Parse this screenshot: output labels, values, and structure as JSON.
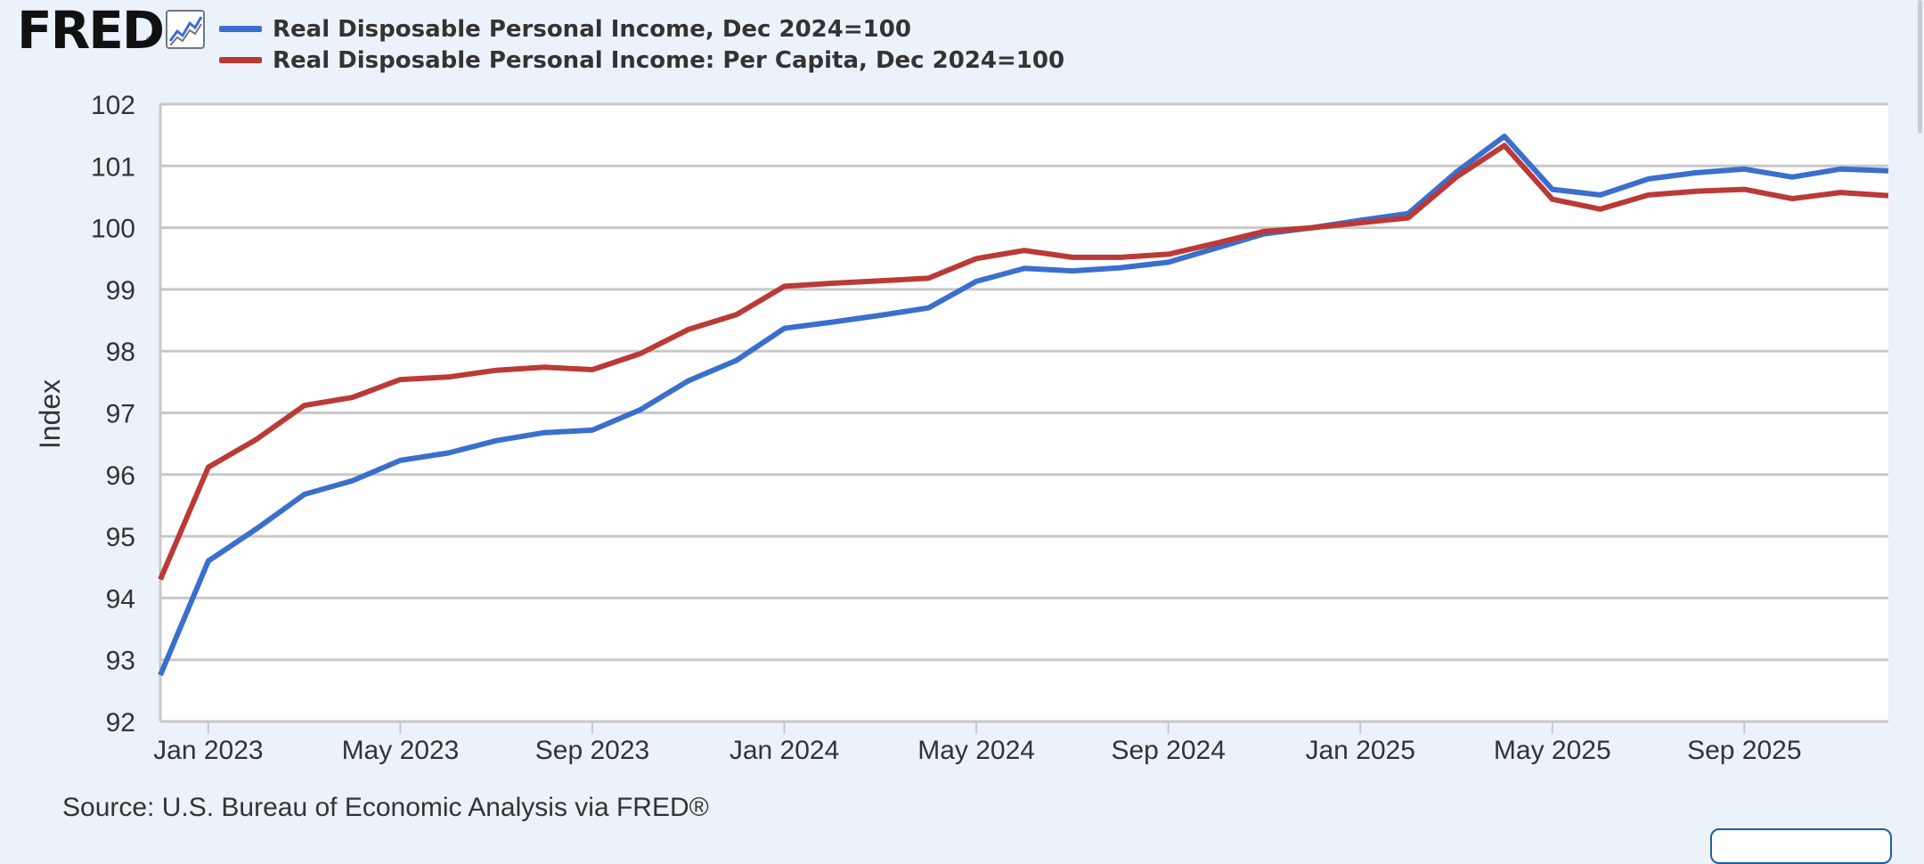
{
  "brand": {
    "logo_text": "FRED",
    "registered_mark": "®",
    "icon": "line-chart-icon"
  },
  "legend": [
    {
      "label": "Real Disposable Personal Income, Dec 2024=100",
      "color": "#3a6fce"
    },
    {
      "label": "Real Disposable Personal Income: Per Capita, Dec 2024=100",
      "color": "#bb3a36"
    }
  ],
  "source": "Source: U.S. Bureau of Economic Analysis via FRED®",
  "chart_data": {
    "type": "line",
    "ylabel": "Index",
    "ylim": [
      92,
      102
    ],
    "y_ticks": [
      "102",
      "101",
      "100",
      "99",
      "98",
      "97",
      "96",
      "95",
      "94",
      "93",
      "92"
    ],
    "x_range": [
      "2022-12",
      "2025-12"
    ],
    "x_ticks": [
      {
        "label": "Jan 2023",
        "date": "2023-01"
      },
      {
        "label": "May 2023",
        "date": "2023-05"
      },
      {
        "label": "Sep 2023",
        "date": "2023-09"
      },
      {
        "label": "Jan 2024",
        "date": "2024-01"
      },
      {
        "label": "May 2024",
        "date": "2024-05"
      },
      {
        "label": "Sep 2024",
        "date": "2024-09"
      },
      {
        "label": "Jan 2025",
        "date": "2025-01"
      },
      {
        "label": "May 2025",
        "date": "2025-05"
      },
      {
        "label": "Sep 2025",
        "date": "2025-09"
      }
    ],
    "grid": true,
    "legend_position": "top-left",
    "x": [
      "2022-12",
      "2023-01",
      "2023-02",
      "2023-03",
      "2023-04",
      "2023-05",
      "2023-06",
      "2023-07",
      "2023-08",
      "2023-09",
      "2023-10",
      "2023-11",
      "2023-12",
      "2024-01",
      "2024-02",
      "2024-03",
      "2024-04",
      "2024-05",
      "2024-06",
      "2024-07",
      "2024-08",
      "2024-09",
      "2024-10",
      "2024-11",
      "2024-12",
      "2025-01",
      "2025-02",
      "2025-03",
      "2025-04",
      "2025-05",
      "2025-06",
      "2025-07",
      "2025-08",
      "2025-09",
      "2025-10",
      "2025-11",
      "2025-12"
    ],
    "series": [
      {
        "name": "Real Disposable Personal Income, Dec 2024=100",
        "color": "#3a6fce",
        "values": [
          92.75,
          94.6,
          95.12,
          95.68,
          95.9,
          96.23,
          96.35,
          96.55,
          96.68,
          96.72,
          97.05,
          97.52,
          97.85,
          98.37,
          98.47,
          98.58,
          98.7,
          99.13,
          99.34,
          99.3,
          99.35,
          99.44,
          99.67,
          99.9,
          100.0,
          100.12,
          100.23,
          100.9,
          101.48,
          100.62,
          100.53,
          100.79,
          100.89,
          100.95,
          100.82,
          100.95,
          100.92
        ]
      },
      {
        "name": "Real Disposable Personal Income: Per Capita, Dec 2024=100",
        "color": "#bb3a36",
        "values": [
          94.3,
          96.12,
          96.57,
          97.12,
          97.25,
          97.54,
          97.58,
          97.69,
          97.74,
          97.7,
          97.96,
          98.35,
          98.59,
          99.05,
          99.1,
          99.14,
          99.18,
          99.5,
          99.63,
          99.52,
          99.52,
          99.57,
          99.75,
          99.94,
          100.0,
          100.08,
          100.16,
          100.82,
          101.33,
          100.46,
          100.3,
          100.53,
          100.59,
          100.62,
          100.47,
          100.57,
          100.52
        ]
      }
    ]
  }
}
